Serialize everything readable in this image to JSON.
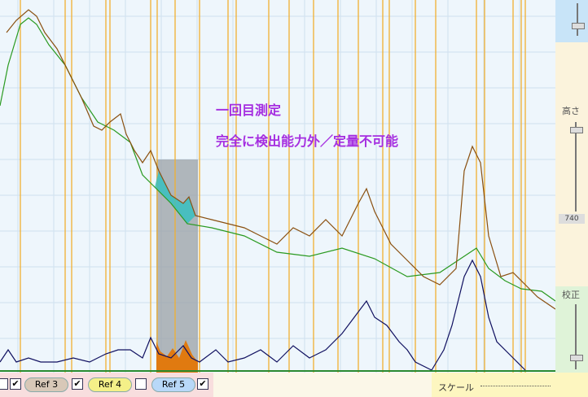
{
  "annotations": [
    "一回目測定",
    "完全に検出能力外／定量不可能"
  ],
  "references": [
    "Ref 3",
    "Ref 4",
    "Ref 5"
  ],
  "side_panel": {
    "height_label": "高さ",
    "height_value": 740,
    "calibration_label": "校正"
  },
  "scale_label": "スケール"
}
